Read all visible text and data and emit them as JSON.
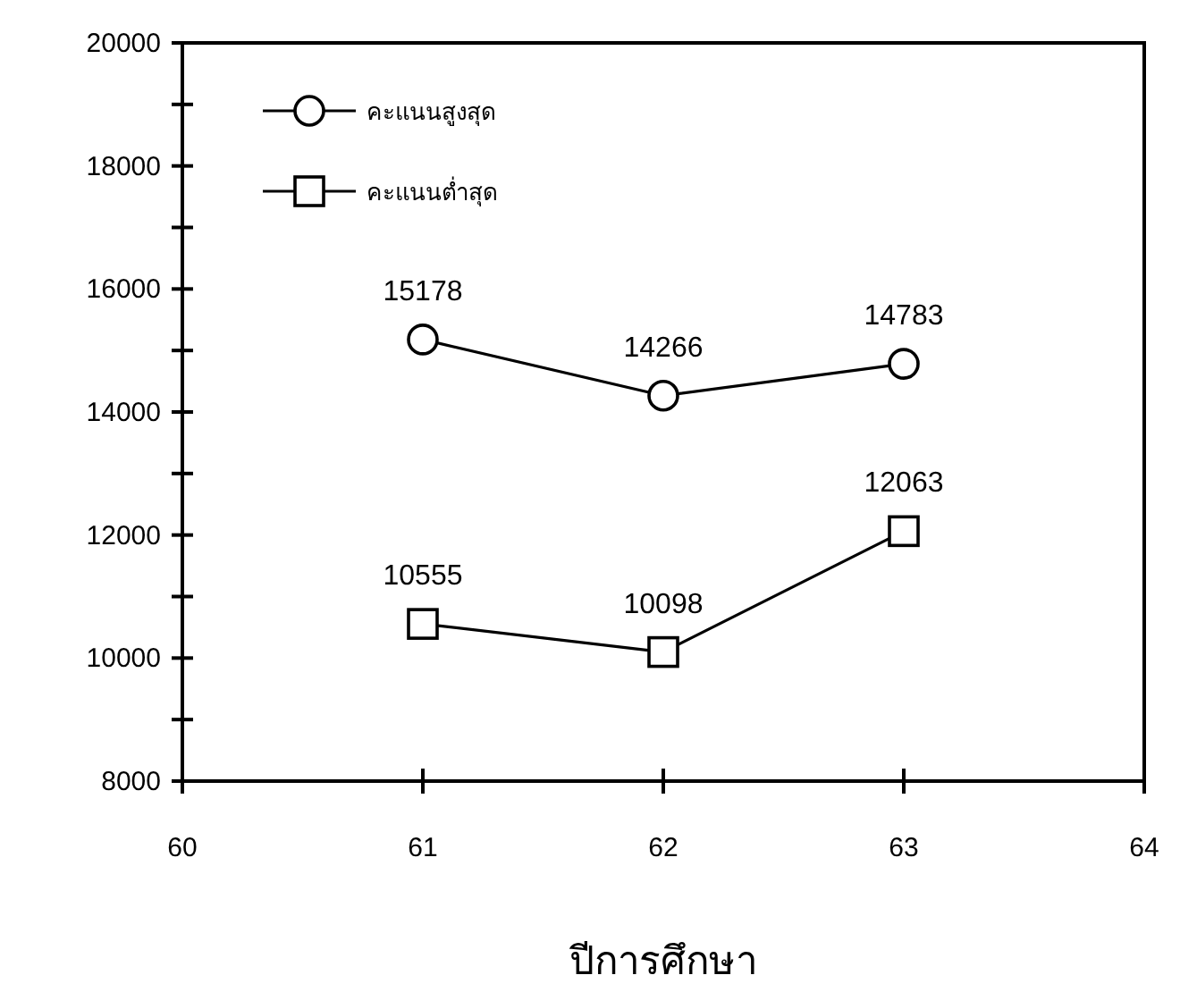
{
  "chart_data": {
    "type": "line",
    "xlabel": "ปีการศึกษา",
    "x": [
      61,
      62,
      63
    ],
    "series": [
      {
        "name": "คะแนนสูงสุด",
        "color": "#000000",
        "marker": "circle",
        "values": [
          15178,
          14266,
          14783
        ]
      },
      {
        "name": "คะแนนต่ำสุด",
        "color": "#000000",
        "marker": "square",
        "values": [
          10555,
          10098,
          12063
        ]
      }
    ],
    "xlim": [
      60,
      64
    ],
    "xticks": [
      60,
      61,
      62,
      63,
      64
    ],
    "ylim": [
      8000,
      20000
    ],
    "yticks": [
      8000,
      {
        "value": 9000,
        "label": null
      },
      10000,
      {
        "value": 11000,
        "label": null
      },
      12000,
      {
        "value": 13000,
        "label": null
      },
      14000,
      {
        "value": 15000,
        "label": null
      },
      16000,
      {
        "value": 17000,
        "label": null
      },
      18000,
      {
        "value": 19000,
        "label": null
      },
      20000
    ],
    "data_labels": true,
    "legend": "top left",
    "grid": false,
    "line_style": "solid"
  }
}
